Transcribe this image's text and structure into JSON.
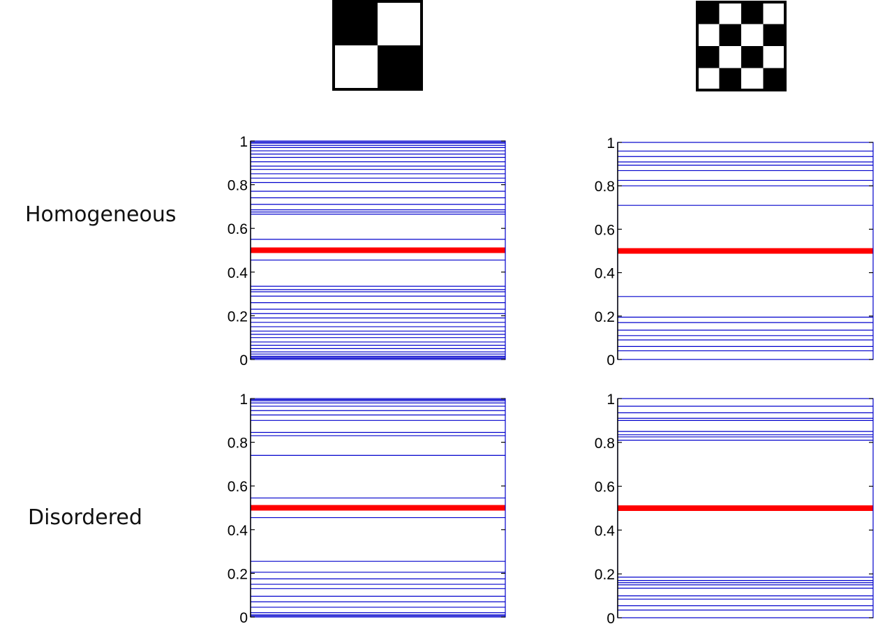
{
  "row_labels": [
    "Homogeneous",
    "Disordered"
  ],
  "colors": {
    "level": "#0000cc",
    "midline": "#ff0000",
    "frame": "#000000"
  },
  "patterns": [
    {
      "grid": 2,
      "cells": [
        [
          1,
          0
        ],
        [
          0,
          1
        ]
      ]
    },
    {
      "grid": 4,
      "cells": [
        [
          1,
          0,
          1,
          0
        ],
        [
          0,
          1,
          0,
          1
        ],
        [
          1,
          0,
          1,
          0
        ],
        [
          0,
          1,
          0,
          1
        ]
      ]
    }
  ],
  "chart_data": [
    {
      "type": "line",
      "row": "Homogeneous",
      "pattern": "2x2 checkerboard",
      "ylim": [
        0,
        1
      ],
      "yticks": [
        0,
        0.2,
        0.4,
        0.6,
        0.8,
        1
      ],
      "ytick_labels": [
        "0",
        "0.2",
        "0.4",
        "0.6",
        "0.8",
        "1"
      ],
      "highlight_value": 0.5,
      "levels": [
        0.005,
        0.01,
        0.015,
        0.025,
        0.035,
        0.05,
        0.065,
        0.08,
        0.1,
        0.115,
        0.13,
        0.15,
        0.17,
        0.19,
        0.21,
        0.23,
        0.26,
        0.29,
        0.31,
        0.32,
        0.335,
        0.455,
        0.55,
        0.665,
        0.675,
        0.685,
        0.71,
        0.74,
        0.77,
        0.81,
        0.83,
        0.85,
        0.87,
        0.885,
        0.905,
        0.925,
        0.94,
        0.955,
        0.97,
        0.98,
        0.99,
        0.995
      ]
    },
    {
      "type": "line",
      "row": "Homogeneous",
      "pattern": "4x4 checkerboard",
      "ylim": [
        0,
        1
      ],
      "yticks": [
        0,
        0.2,
        0.4,
        0.6,
        0.8,
        1
      ],
      "ytick_labels": [
        "0",
        "0.2",
        "0.4",
        "0.6",
        "0.8",
        "1"
      ],
      "highlight_value": 0.5,
      "levels": [
        0.04,
        0.06,
        0.09,
        0.11,
        0.135,
        0.17,
        0.195,
        0.29,
        0.71,
        0.8,
        0.825,
        0.87,
        0.895,
        0.91,
        0.935,
        0.96
      ]
    },
    {
      "type": "line",
      "row": "Disordered",
      "pattern": "2x2 checkerboard",
      "ylim": [
        0,
        1
      ],
      "yticks": [
        0,
        0.2,
        0.4,
        0.6,
        0.8,
        1
      ],
      "ytick_labels": [
        "0",
        "0.2",
        "0.4",
        "0.6",
        "0.8",
        "1"
      ],
      "highlight_value": 0.5,
      "levels": [
        0.005,
        0.01,
        0.02,
        0.045,
        0.07,
        0.095,
        0.13,
        0.15,
        0.175,
        0.205,
        0.255,
        0.455,
        0.545,
        0.74,
        0.83,
        0.845,
        0.9,
        0.925,
        0.945,
        0.965,
        0.98,
        0.99,
        0.995
      ]
    },
    {
      "type": "line",
      "row": "Disordered",
      "pattern": "4x4 checkerboard",
      "ylim": [
        0,
        1
      ],
      "yticks": [
        0,
        0.2,
        0.4,
        0.6,
        0.8,
        1
      ],
      "ytick_labels": [
        "0",
        "0.2",
        "0.4",
        "0.6",
        "0.8",
        "1"
      ],
      "highlight_value": 0.5,
      "levels": [
        0.035,
        0.055,
        0.085,
        0.1,
        0.135,
        0.15,
        0.16,
        0.17,
        0.185,
        0.81,
        0.825,
        0.835,
        0.85,
        0.9,
        0.91,
        0.935,
        0.965
      ]
    }
  ]
}
